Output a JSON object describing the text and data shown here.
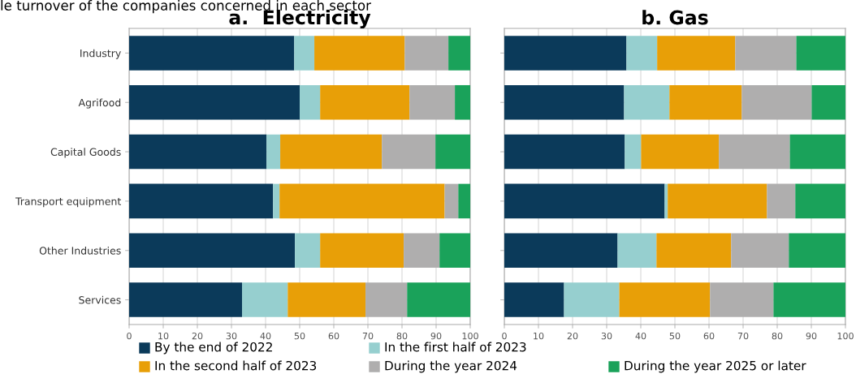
{
  "chart_data": [
    {
      "type": "bar",
      "orientation": "horizontal",
      "stacked": true,
      "title": "a.  Electricity",
      "subtitle": "le turnover of the companies concerned in each sector",
      "categories": [
        "Industry",
        "Agrifood",
        "Capital Goods",
        "Transport equipment",
        "Other Industries",
        "Services"
      ],
      "series": [
        {
          "name": "By the end of 2022",
          "color": "#0b3a5a",
          "values": [
            48.4,
            50.0,
            40.3,
            42.2,
            48.6,
            33.1
          ]
        },
        {
          "name": "In the first half of 2023",
          "color": "#96cfcf",
          "values": [
            5.9,
            6.0,
            4.0,
            1.9,
            7.4,
            13.4
          ]
        },
        {
          "name": "In the second half of 2023",
          "color": "#e89f07",
          "values": [
            26.5,
            26.2,
            29.8,
            48.4,
            24.5,
            22.8
          ]
        },
        {
          "name": "During the year 2024",
          "color": "#afaeae",
          "values": [
            12.8,
            13.3,
            15.7,
            4.0,
            10.5,
            12.2
          ]
        },
        {
          "name": "During the year 2025 or later",
          "color": "#1aa25a",
          "values": [
            6.4,
            4.5,
            10.2,
            3.5,
            9.0,
            18.5
          ]
        }
      ],
      "xlim": [
        0,
        100
      ],
      "xticks": [
        0,
        10,
        20,
        30,
        40,
        50,
        60,
        70,
        80,
        90,
        100
      ],
      "grid": true,
      "legend": "bottom"
    },
    {
      "type": "bar",
      "orientation": "horizontal",
      "stacked": true,
      "title": "b. Gas",
      "categories": [
        "Industry",
        "Agrifood",
        "Capital Goods",
        "Transport equipment",
        "Other Industries",
        "Services"
      ],
      "series": [
        {
          "name": "By the end of 2022",
          "color": "#0b3a5a",
          "values": [
            35.8,
            35.1,
            35.3,
            47.0,
            33.2,
            17.5
          ]
        },
        {
          "name": "In the first half of 2023",
          "color": "#96cfcf",
          "values": [
            9.0,
            13.3,
            4.8,
            0.9,
            11.4,
            16.2
          ]
        },
        {
          "name": "In the second half of 2023",
          "color": "#e89f07",
          "values": [
            22.9,
            21.2,
            22.8,
            29.1,
            21.9,
            26.6
          ]
        },
        {
          "name": "During the year 2024",
          "color": "#afaeae",
          "values": [
            17.9,
            20.5,
            20.8,
            8.3,
            16.9,
            18.6
          ]
        },
        {
          "name": "During the year 2025 or later",
          "color": "#1aa25a",
          "values": [
            14.4,
            9.9,
            16.3,
            14.7,
            16.6,
            21.1
          ]
        }
      ],
      "xlim": [
        0,
        100
      ],
      "xticks": [
        0,
        10,
        20,
        30,
        40,
        50,
        60,
        70,
        80,
        90,
        100
      ],
      "grid": true,
      "legend": "bottom",
      "tick_labels": "x"
    }
  ]
}
